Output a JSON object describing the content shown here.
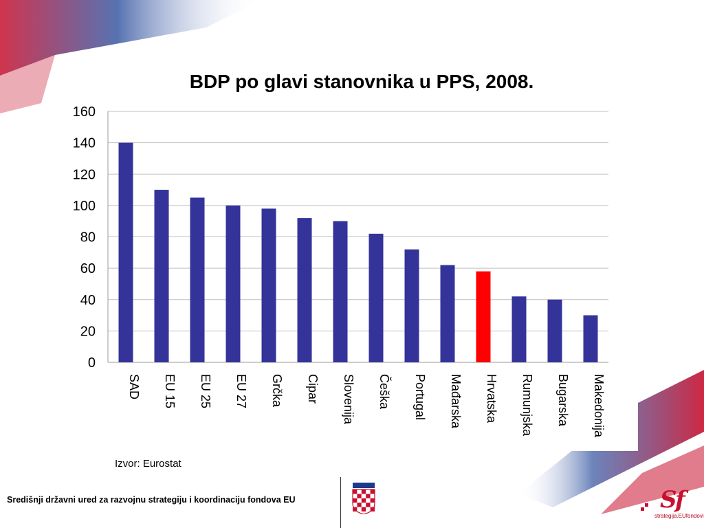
{
  "chart_data": {
    "type": "bar",
    "title": "BDP po glavi stanovnika u PPS, 2008.",
    "categories": [
      "SAD",
      "EU 15",
      "EU 25",
      "EU 27",
      "Grčka",
      "Cipar",
      "Slovenija",
      "Češka",
      "Portugal",
      "Mađarska",
      "Hrvatska",
      "Rumunjska",
      "Bugarska",
      "Makedonija"
    ],
    "values": [
      140,
      110,
      105,
      100,
      98,
      92,
      90,
      82,
      72,
      62,
      58,
      42,
      40,
      30
    ],
    "ylim": [
      0,
      160
    ],
    "yticks": [
      0,
      20,
      40,
      60,
      80,
      100,
      120,
      140,
      160
    ],
    "xlabel": "",
    "ylabel": "",
    "grid": true,
    "bar_color": "#333399",
    "highlight_category": "Hrvatska",
    "highlight_color": "#ff0000"
  },
  "source_note": "Izvor: Eurostat",
  "footer": {
    "organization": "Središnji državni ured za razvojnu strategiju i koordinaciju fondova EU",
    "logo_caption": "strategija.EUfondovi"
  },
  "colors": {
    "brand_red": "#c8102e",
    "brand_blue": "#1f3a8a"
  }
}
